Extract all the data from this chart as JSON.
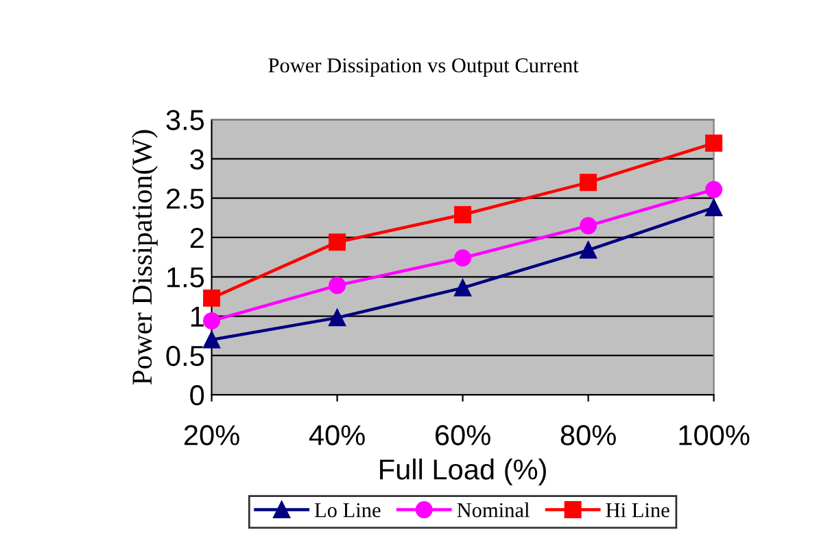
{
  "chart_data": {
    "type": "line",
    "title": "Power Dissipation vs Output Current",
    "xlabel": "Full Load (%)",
    "ylabel": "Power Dissipation(W)",
    "categories": [
      "20%",
      "40%",
      "60%",
      "80%",
      "100%"
    ],
    "series": [
      {
        "name": "Lo Line",
        "color": "#000080",
        "marker": "triangle",
        "values": [
          0.7,
          0.98,
          1.36,
          1.84,
          2.38
        ]
      },
      {
        "name": "Nominal",
        "color": "#ff00ff",
        "marker": "circle",
        "values": [
          0.94,
          1.39,
          1.74,
          2.15,
          2.61
        ]
      },
      {
        "name": "Hi Line",
        "color": "#ff0000",
        "marker": "square",
        "values": [
          1.23,
          1.94,
          2.29,
          2.7,
          3.2
        ]
      }
    ],
    "ylim": [
      0,
      3.5
    ],
    "yticks": [
      0,
      0.5,
      1,
      1.5,
      2,
      2.5,
      3,
      3.5
    ],
    "grid": "y",
    "legend": "bottom",
    "line_style": "solid"
  }
}
